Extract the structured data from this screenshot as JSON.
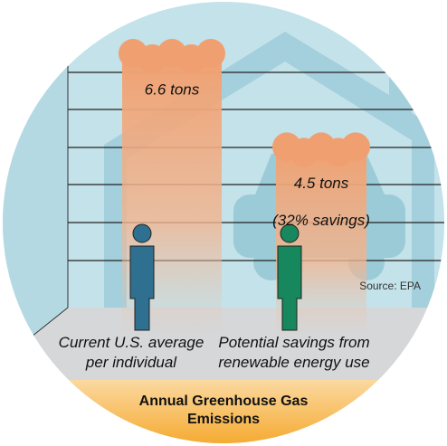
{
  "chart_data": {
    "type": "bar",
    "title": "Annual Greenhouse Gas Emissions",
    "categories": [
      "Current U.S. average per individual",
      "Potential savings from renewable energy use"
    ],
    "values": [
      6.6,
      4.5
    ],
    "value_labels": [
      "6.6 tons",
      "4.5 tons"
    ],
    "annotation": "(32% savings)",
    "source": "Source: EPA",
    "color": "#f0a070",
    "person_colors": [
      "#2f6f8f",
      "#17875d"
    ]
  }
}
